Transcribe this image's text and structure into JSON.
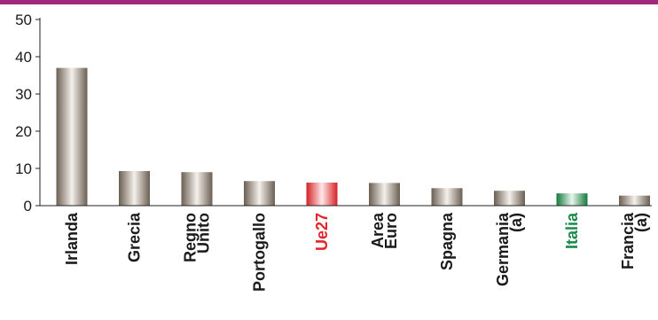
{
  "chart_data": {
    "type": "bar",
    "categories": [
      "Irlanda",
      "Grecia",
      "Regno Unito",
      "Portogallo",
      "Ue27",
      "Area Euro",
      "Spagna",
      "Germania (a)",
      "Italia",
      "Francia (a)"
    ],
    "category_lines": [
      [
        "Irlanda"
      ],
      [
        "Grecia"
      ],
      [
        "Regno",
        "Unito"
      ],
      [
        "Portogallo"
      ],
      [
        "Ue27"
      ],
      [
        "Area",
        "Euro"
      ],
      [
        "Spagna"
      ],
      [
        "Germania",
        "(a)"
      ],
      [
        "Italia"
      ],
      [
        "Francia",
        "(a)"
      ]
    ],
    "values": [
      37,
      9.3,
      9.0,
      6.6,
      6.2,
      6.1,
      4.7,
      4.0,
      3.3,
      2.7
    ],
    "highlight": {
      "Ue27": "red",
      "Italia": "green"
    },
    "ylim": [
      0,
      50
    ],
    "yticks": [
      "0",
      "10",
      "20",
      "30",
      "40",
      "50"
    ],
    "title": "",
    "xlabel": "",
    "ylabel": "",
    "grid": false
  },
  "colors": {
    "top_rule": "#a0287c",
    "bar_dark": "#6b5e52",
    "bar_light": "#f4f0ea",
    "red_dark": "#d42024",
    "red_light": "#ffe8e8",
    "green_dark": "#127a3c",
    "green_light": "#e8f5ec",
    "label_red": "#e3242b",
    "label_green": "#198a4a",
    "text": "#1a1a1a"
  }
}
